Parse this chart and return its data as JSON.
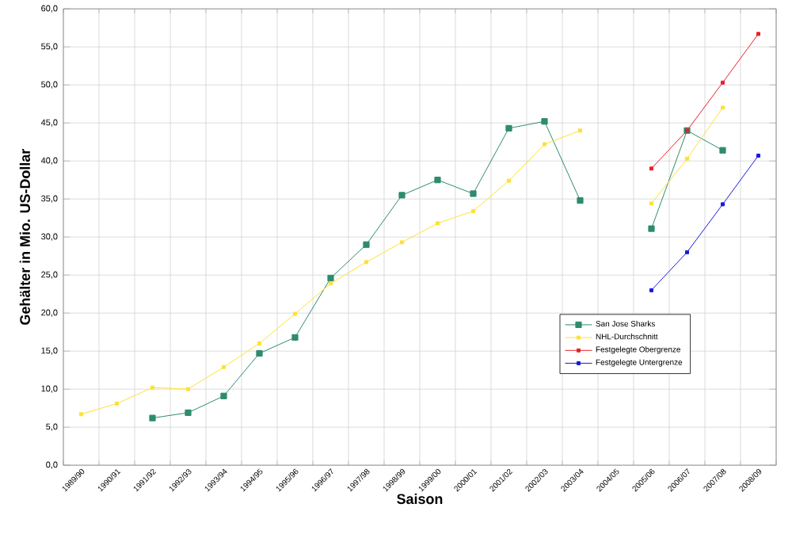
{
  "chart_data": {
    "type": "line",
    "xlabel": "Saison",
    "ylabel": "Gehälter in Mio. US-Dollar",
    "categories": [
      "1989/90",
      "1990/91",
      "1991/92",
      "1992/93",
      "1993/94",
      "1994/95",
      "1995/96",
      "1996/97",
      "1997/98",
      "1998/99",
      "1999/00",
      "2000/01",
      "2001/02",
      "2002/03",
      "2003/04",
      "2004/05",
      "2005/06",
      "2006/07",
      "2007/08",
      "2008/09"
    ],
    "series": [
      {
        "name": "San Jose Sharks",
        "color": "#2e8b6e",
        "values": [
          null,
          null,
          6.2,
          6.9,
          9.1,
          14.7,
          16.8,
          24.6,
          29.0,
          35.5,
          37.5,
          35.7,
          44.3,
          45.2,
          34.8,
          null,
          31.1,
          44.0,
          41.4,
          null
        ]
      },
      {
        "name": "NHL-Durchschnitt",
        "color": "#ffe033",
        "values": [
          6.7,
          8.1,
          10.2,
          10.0,
          12.9,
          16.0,
          19.9,
          23.9,
          26.7,
          29.3,
          31.8,
          33.4,
          37.4,
          42.2,
          44.0,
          null,
          34.4,
          40.3,
          47.0,
          null
        ]
      },
      {
        "name": "Festgelegte Obergrenze",
        "color": "#e8202a",
        "values": [
          null,
          null,
          null,
          null,
          null,
          null,
          null,
          null,
          null,
          null,
          null,
          null,
          null,
          null,
          null,
          null,
          39.0,
          44.0,
          50.3,
          56.7
        ]
      },
      {
        "name": "Festgelegte Untergrenze",
        "color": "#1a1adc",
        "values": [
          null,
          null,
          null,
          null,
          null,
          null,
          null,
          null,
          null,
          null,
          null,
          null,
          null,
          null,
          null,
          null,
          23.0,
          28.0,
          34.3,
          40.7
        ]
      }
    ],
    "ylim": [
      0,
      60
    ],
    "yticks": [
      {
        "value": 0,
        "label": "0,0"
      },
      {
        "value": 5,
        "label": "5,0"
      },
      {
        "value": 10,
        "label": "10,0"
      },
      {
        "value": 15,
        "label": "15,0"
      },
      {
        "value": 20,
        "label": "20,0"
      },
      {
        "value": 25,
        "label": "25,0"
      },
      {
        "value": 30,
        "label": "30,0"
      },
      {
        "value": 35,
        "label": "35,0"
      },
      {
        "value": 40,
        "label": "40,0"
      },
      {
        "value": 45,
        "label": "45,0"
      },
      {
        "value": 50,
        "label": "50,0"
      },
      {
        "value": 55,
        "label": "55,0"
      },
      {
        "value": 60,
        "label": "60,0"
      }
    ],
    "grid": true,
    "legend": "bottom right",
    "marker": "square",
    "line_style": "solid"
  }
}
